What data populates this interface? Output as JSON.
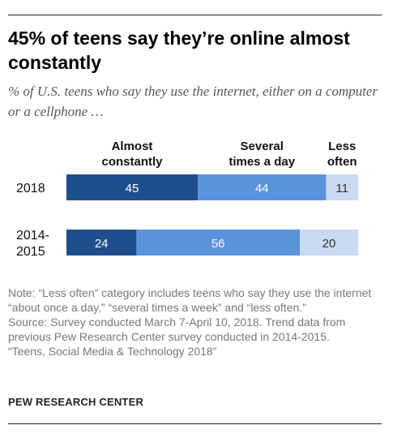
{
  "title": "45% of teens say they’re online almost constantly",
  "subtitle": "% of U.S. teens who say they use the internet, either on a computer or a cellphone …",
  "chart_data": {
    "type": "bar",
    "orientation": "horizontal",
    "stacked": true,
    "categories": [
      "2018",
      "2014-\n2015"
    ],
    "series": [
      {
        "name": "Almost constantly",
        "label_lines": [
          "Almost",
          "constantly"
        ],
        "values": [
          45,
          24
        ],
        "color": "#1f4e8c",
        "label_color": "#ffffff"
      },
      {
        "name": "Several times a day",
        "label_lines": [
          "Several",
          "times a day"
        ],
        "values": [
          44,
          56
        ],
        "color": "#5b92dc",
        "label_color": "#ffffff"
      },
      {
        "name": "Less often",
        "label_lines": [
          "Less",
          "often"
        ],
        "values": [
          11,
          20
        ],
        "color": "#c9daf2",
        "label_color": "#333333"
      }
    ],
    "xlim": [
      0,
      100
    ],
    "grid": false,
    "legend": "top"
  },
  "notes": [
    "Note: “Less often” category includes teens who say they use the internet “about once a day,” “several times a week” and “less often.”",
    "Source: Survey conducted March 7-April 10, 2018. Trend data from previous Pew Research Center survey conducted in 2014-2015.",
    "“Teens, Social Media & Technology 2018”"
  ],
  "credit": "PEW RESEARCH CENTER"
}
